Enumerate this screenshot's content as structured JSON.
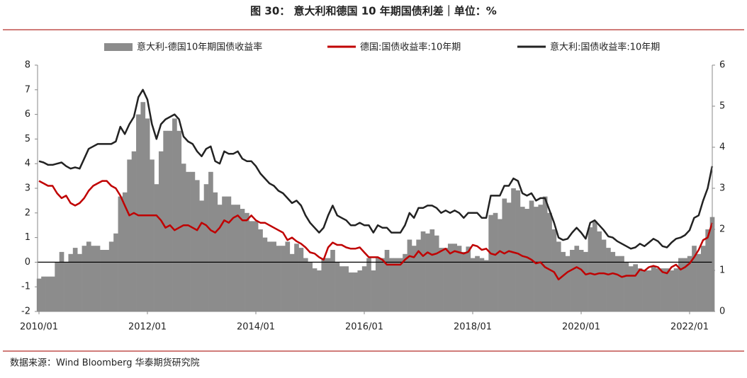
{
  "chart_data": {
    "type": "combo",
    "title": "图 30： 意大利和德国 10 年期国债利差｜单位：%",
    "source": "数据来源：Wind Bloomberg 华泰期货研究院",
    "x": [
      "2010/01",
      "2010/02",
      "2010/03",
      "2010/04",
      "2010/05",
      "2010/06",
      "2010/07",
      "2010/08",
      "2010/09",
      "2010/10",
      "2010/11",
      "2010/12",
      "2011/01",
      "2011/02",
      "2011/03",
      "2011/04",
      "2011/05",
      "2011/06",
      "2011/07",
      "2011/08",
      "2011/09",
      "2011/10",
      "2011/11",
      "2011/12",
      "2012/01",
      "2012/02",
      "2012/03",
      "2012/04",
      "2012/05",
      "2012/06",
      "2012/07",
      "2012/08",
      "2012/09",
      "2012/10",
      "2012/11",
      "2012/12",
      "2013/01",
      "2013/02",
      "2013/03",
      "2013/04",
      "2013/05",
      "2013/06",
      "2013/07",
      "2013/08",
      "2013/09",
      "2013/10",
      "2013/11",
      "2013/12",
      "2014/01",
      "2014/02",
      "2014/03",
      "2014/04",
      "2014/05",
      "2014/06",
      "2014/07",
      "2014/08",
      "2014/09",
      "2014/10",
      "2014/11",
      "2014/12",
      "2015/01",
      "2015/02",
      "2015/03",
      "2015/04",
      "2015/05",
      "2015/06",
      "2015/07",
      "2015/08",
      "2015/09",
      "2015/10",
      "2015/11",
      "2015/12",
      "2016/01",
      "2016/02",
      "2016/03",
      "2016/04",
      "2016/05",
      "2016/06",
      "2016/07",
      "2016/08",
      "2016/09",
      "2016/10",
      "2016/11",
      "2016/12",
      "2017/01",
      "2017/02",
      "2017/03",
      "2017/04",
      "2017/05",
      "2017/06",
      "2017/07",
      "2017/08",
      "2017/09",
      "2017/10",
      "2017/11",
      "2017/12",
      "2018/01",
      "2018/02",
      "2018/03",
      "2018/04",
      "2018/05",
      "2018/06",
      "2018/07",
      "2018/08",
      "2018/09",
      "2018/10",
      "2018/11",
      "2018/12",
      "2019/01",
      "2019/02",
      "2019/03",
      "2019/04",
      "2019/05",
      "2019/06",
      "2019/07",
      "2019/08",
      "2019/09",
      "2019/10",
      "2019/11",
      "2019/12",
      "2020/01",
      "2020/02",
      "2020/03",
      "2020/04",
      "2020/05",
      "2020/06",
      "2020/07",
      "2020/08",
      "2020/09",
      "2020/10",
      "2020/11",
      "2020/12",
      "2021/01",
      "2021/02",
      "2021/03",
      "2021/04",
      "2021/05",
      "2021/06",
      "2021/07",
      "2021/08",
      "2021/09",
      "2021/10",
      "2021/11",
      "2021/12",
      "2022/01",
      "2022/02",
      "2022/03",
      "2022/04",
      "2022/05",
      "2022/06"
    ],
    "xticks": [
      "2010/01",
      "2012/01",
      "2014/01",
      "2016/01",
      "2018/01",
      "2020/01",
      "2022/01"
    ],
    "ylim": [
      -2,
      8
    ],
    "yticks": [
      -2,
      -1,
      0,
      1,
      2,
      3,
      4,
      5,
      6,
      7,
      8
    ],
    "y2lim": [
      0,
      6
    ],
    "y2ticks": [
      0,
      1,
      2,
      3,
      4,
      5,
      6
    ],
    "series": [
      {
        "name": "意大利-德国10年期国债收益率",
        "color": "#8c8c8c",
        "type": "bar",
        "axis": "y2",
        "values": [
          0.8,
          0.85,
          0.85,
          0.85,
          1.2,
          1.45,
          1.2,
          1.4,
          1.55,
          1.4,
          1.6,
          1.7,
          1.6,
          1.6,
          1.5,
          1.5,
          1.7,
          1.9,
          2.8,
          2.9,
          3.7,
          3.9,
          4.8,
          5.1,
          4.7,
          3.7,
          3.1,
          3.9,
          4.4,
          4.4,
          4.7,
          4.4,
          3.6,
          3.4,
          3.4,
          3.2,
          2.7,
          3.1,
          3.4,
          2.9,
          2.6,
          2.8,
          2.8,
          2.6,
          2.6,
          2.5,
          2.4,
          2.2,
          2.2,
          2.0,
          1.8,
          1.7,
          1.7,
          1.6,
          1.6,
          1.7,
          1.4,
          1.65,
          1.55,
          1.3,
          1.2,
          1.05,
          1.0,
          1.3,
          1.3,
          1.5,
          1.2,
          1.1,
          1.1,
          0.95,
          0.95,
          1.0,
          1.1,
          1.3,
          1.0,
          1.3,
          1.3,
          1.5,
          1.3,
          1.3,
          1.3,
          1.4,
          1.75,
          1.6,
          1.75,
          1.95,
          1.9,
          2.0,
          1.85,
          1.55,
          1.55,
          1.65,
          1.65,
          1.6,
          1.45,
          1.58,
          1.3,
          1.35,
          1.3,
          1.25,
          2.35,
          2.4,
          2.25,
          2.75,
          2.65,
          3.0,
          2.95,
          2.55,
          2.5,
          2.7,
          2.55,
          2.6,
          2.8,
          2.4,
          2.0,
          1.7,
          1.45,
          1.35,
          1.5,
          1.6,
          1.5,
          1.45,
          2.05,
          2.2,
          1.95,
          1.75,
          1.55,
          1.45,
          1.35,
          1.35,
          1.2,
          1.1,
          1.15,
          1.05,
          1.0,
          1.0,
          1.1,
          1.05,
          1.05,
          1.05,
          1.0,
          1.05,
          1.3,
          1.3,
          1.35,
          1.6,
          1.4,
          1.6,
          2.0,
          2.3
        ]
      },
      {
        "name": "德国:国债收益率:10年期",
        "color": "#c00000",
        "type": "line",
        "values": [
          3.3,
          3.2,
          3.1,
          3.1,
          2.8,
          2.6,
          2.7,
          2.4,
          2.3,
          2.4,
          2.6,
          2.9,
          3.1,
          3.2,
          3.3,
          3.3,
          3.1,
          3.0,
          2.7,
          2.3,
          1.9,
          2.0,
          1.9,
          1.9,
          1.9,
          1.9,
          1.9,
          1.7,
          1.4,
          1.5,
          1.3,
          1.4,
          1.5,
          1.5,
          1.4,
          1.3,
          1.6,
          1.5,
          1.3,
          1.2,
          1.4,
          1.7,
          1.6,
          1.8,
          1.9,
          1.7,
          1.7,
          1.9,
          1.7,
          1.6,
          1.6,
          1.5,
          1.4,
          1.3,
          1.2,
          0.9,
          1.0,
          0.85,
          0.75,
          0.6,
          0.4,
          0.35,
          0.2,
          0.1,
          0.6,
          0.8,
          0.7,
          0.7,
          0.6,
          0.55,
          0.55,
          0.6,
          0.4,
          0.2,
          0.2,
          0.2,
          0.1,
          -0.1,
          -0.1,
          -0.1,
          -0.1,
          0.1,
          0.25,
          0.2,
          0.45,
          0.25,
          0.4,
          0.3,
          0.35,
          0.45,
          0.55,
          0.35,
          0.45,
          0.4,
          0.35,
          0.42,
          0.7,
          0.65,
          0.5,
          0.55,
          0.35,
          0.3,
          0.45,
          0.35,
          0.45,
          0.4,
          0.35,
          0.25,
          0.2,
          0.1,
          -0.05,
          0.0,
          -0.2,
          -0.3,
          -0.4,
          -0.7,
          -0.55,
          -0.4,
          -0.3,
          -0.2,
          -0.3,
          -0.5,
          -0.45,
          -0.5,
          -0.45,
          -0.45,
          -0.5,
          -0.45,
          -0.5,
          -0.6,
          -0.55,
          -0.55,
          -0.55,
          -0.3,
          -0.35,
          -0.2,
          -0.15,
          -0.2,
          -0.4,
          -0.45,
          -0.2,
          -0.1,
          -0.3,
          -0.2,
          -0.05,
          0.2,
          0.5,
          0.9,
          1.0,
          1.6
        ]
      },
      {
        "name": "意大利:国债收益率:10年期",
        "color": "#222222",
        "type": "line",
        "values": [
          4.1,
          4.05,
          3.95,
          3.95,
          4.0,
          4.05,
          3.9,
          3.8,
          3.85,
          3.8,
          4.2,
          4.6,
          4.7,
          4.8,
          4.8,
          4.8,
          4.8,
          4.9,
          5.5,
          5.2,
          5.6,
          5.9,
          6.7,
          7.0,
          6.6,
          5.6,
          5.0,
          5.6,
          5.8,
          5.9,
          6.0,
          5.8,
          5.1,
          4.9,
          4.8,
          4.5,
          4.3,
          4.6,
          4.7,
          4.1,
          4.0,
          4.5,
          4.4,
          4.4,
          4.5,
          4.2,
          4.1,
          4.1,
          3.9,
          3.6,
          3.4,
          3.2,
          3.1,
          2.9,
          2.8,
          2.6,
          2.4,
          2.5,
          2.3,
          1.9,
          1.6,
          1.4,
          1.2,
          1.4,
          1.9,
          2.3,
          1.9,
          1.8,
          1.7,
          1.5,
          1.5,
          1.6,
          1.5,
          1.5,
          1.2,
          1.5,
          1.4,
          1.4,
          1.2,
          1.2,
          1.2,
          1.5,
          2.0,
          1.8,
          2.2,
          2.2,
          2.3,
          2.3,
          2.2,
          2.0,
          2.1,
          2.0,
          2.1,
          2.0,
          1.8,
          2.0,
          2.0,
          2.0,
          1.8,
          1.8,
          2.7,
          2.7,
          2.7,
          3.1,
          3.1,
          3.4,
          3.3,
          2.8,
          2.7,
          2.8,
          2.5,
          2.6,
          2.6,
          2.1,
          1.6,
          1.0,
          0.9,
          0.95,
          1.2,
          1.4,
          1.2,
          0.95,
          1.6,
          1.7,
          1.5,
          1.3,
          1.05,
          1.0,
          0.85,
          0.75,
          0.65,
          0.55,
          0.6,
          0.75,
          0.65,
          0.8,
          0.95,
          0.85,
          0.65,
          0.6,
          0.8,
          0.95,
          1.0,
          1.1,
          1.3,
          1.8,
          1.9,
          2.5,
          3.0,
          3.9
        ]
      }
    ]
  }
}
